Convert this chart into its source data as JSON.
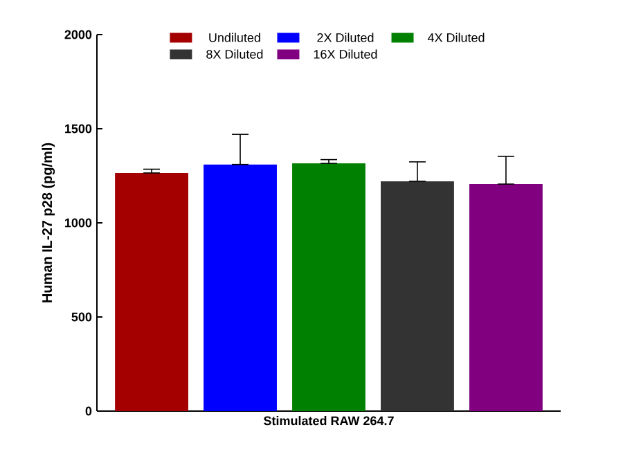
{
  "chart_data": {
    "type": "bar",
    "ylabel": "Human IL-27 p28 (pg/ml)",
    "categories": [
      "Stimulated RAW 264.7"
    ],
    "ylim": [
      0,
      2000
    ],
    "yticks": [
      0,
      500,
      1000,
      1500,
      2000
    ],
    "legend": "top",
    "grid": false,
    "series": [
      {
        "name": "Undiluted",
        "color": "#a50000",
        "values": [
          1265
        ],
        "errors": [
          [
            1265,
            1285
          ]
        ]
      },
      {
        "name": "2X Diluted",
        "color": "#0000ff",
        "values": [
          1310
        ],
        "errors": [
          [
            1310,
            1470
          ]
        ]
      },
      {
        "name": "4X Diluted",
        "color": "#008000",
        "values": [
          1316
        ],
        "errors": [
          [
            1316,
            1336
          ]
        ]
      },
      {
        "name": "8X Diluted",
        "color": "#333333",
        "values": [
          1221
        ],
        "errors": [
          [
            1221,
            1324
          ]
        ]
      },
      {
        "name": "16X Diluted",
        "color": "#800080",
        "values": [
          1206
        ],
        "errors": [
          [
            1206,
            1353
          ]
        ]
      }
    ]
  }
}
